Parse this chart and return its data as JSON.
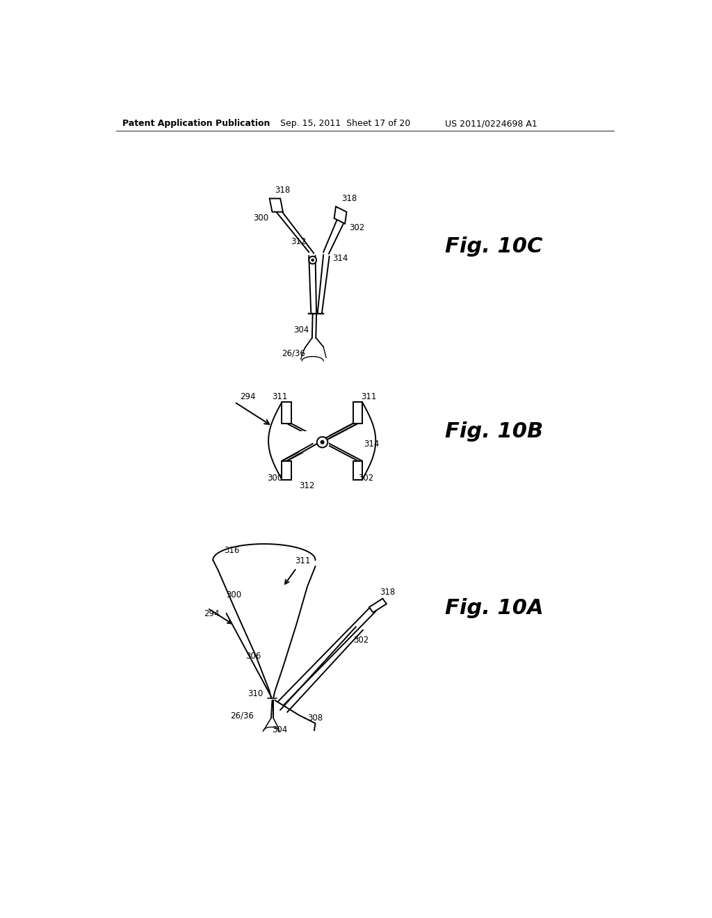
{
  "background_color": "#ffffff",
  "text_color": "#000000",
  "line_color": "#000000",
  "line_width": 1.4,
  "header_left": "Patent Application Publication",
  "header_mid": "Sep. 15, 2011  Sheet 17 of 20",
  "header_right": "US 2011/0224698 A1"
}
